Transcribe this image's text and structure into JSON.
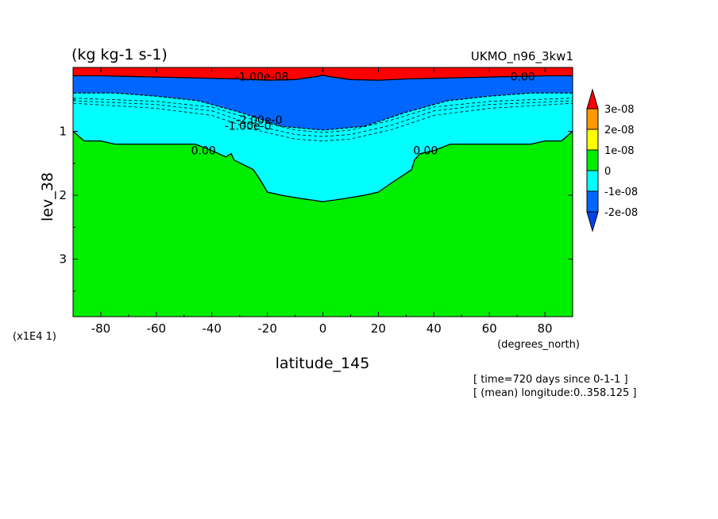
{
  "chart_data": {
    "type": "filled-contour",
    "title_left": "(kg kg-1 s-1)",
    "title_right": "UKMO_n96_3kw1",
    "xlabel": "latitude_145",
    "xunits": "(degrees_north)",
    "ylabel": "lev_38",
    "yscale_note": "(x1E4 1)",
    "xlim": [
      -90,
      90
    ],
    "ylim": [
      3.9,
      0.0
    ],
    "x_ticks": [
      -80,
      -60,
      -40,
      -20,
      0,
      20,
      40,
      60,
      80
    ],
    "x_tick_labels": [
      "-80",
      "-60",
      "-40",
      "-20",
      "0",
      "20",
      "40",
      "60",
      "80"
    ],
    "y_ticks": [
      1,
      2,
      3
    ],
    "y_tick_labels": [
      "1",
      "2",
      "3"
    ],
    "contour_labels": [
      "0.00",
      "0.00",
      "0.00",
      "-2.00e-0",
      "-1.00e-0",
      "-1.00e-08"
    ],
    "colorbar": {
      "levels": [
        "3e-08",
        "2e-08",
        "1e-08",
        "0",
        "-1e-08",
        "-2e-08"
      ],
      "colors": [
        "#ff0000",
        "#ff9900",
        "#ffff00",
        "#00ee00",
        "#00ffff",
        "#0066ff",
        "#0044ee"
      ]
    },
    "footer": [
      "[ time=720 days since 0-1-1 ]",
      "[ (mean) longitude:0..358.125 ]"
    ],
    "fill_colors": {
      "red": "#ff0000",
      "blue": "#0066ff",
      "cyan": "#00ffff",
      "green": "#00ee00"
    },
    "zero_contour": {
      "lat": [
        -90,
        -86,
        -80,
        -75,
        -60,
        -46,
        -40,
        -35,
        -33,
        -32,
        -25,
        -22,
        -20,
        -15,
        -8,
        0,
        8,
        15,
        20,
        25,
        32,
        33,
        35,
        40,
        46,
        60,
        75,
        80,
        86,
        90
      ],
      "lev": [
        1.0,
        1.15,
        1.15,
        1.2,
        1.2,
        1.2,
        1.3,
        1.4,
        1.35,
        1.45,
        1.6,
        1.8,
        1.95,
        2.0,
        2.05,
        2.1,
        2.05,
        2.0,
        1.95,
        1.8,
        1.6,
        1.45,
        1.35,
        1.3,
        1.2,
        1.2,
        1.2,
        1.15,
        1.15,
        1.0
      ]
    },
    "blue_lower_boundary": {
      "lat": [
        -90,
        -75,
        -60,
        -45,
        -30,
        -15,
        0,
        15,
        30,
        45,
        60,
        75,
        90
      ],
      "lev": [
        0.4,
        0.4,
        0.45,
        0.52,
        0.7,
        0.92,
        0.98,
        0.92,
        0.7,
        0.52,
        0.45,
        0.4,
        0.4
      ]
    },
    "red_lower_boundary": {
      "lat": [
        -90,
        -80,
        -70,
        -60,
        -50,
        -40,
        -30,
        -20,
        -10,
        -2,
        0,
        2,
        10,
        20,
        30,
        40,
        50,
        60,
        70,
        80,
        90
      ],
      "lev": [
        0.13,
        0.13,
        0.14,
        0.15,
        0.16,
        0.17,
        0.18,
        0.2,
        0.19,
        0.14,
        0.12,
        0.14,
        0.19,
        0.2,
        0.18,
        0.17,
        0.16,
        0.15,
        0.14,
        0.13,
        0.13
      ]
    },
    "dashed_contours": [
      {
        "lat": [
          -90,
          -60,
          -40,
          -25,
          -10,
          0,
          10,
          25,
          40,
          60,
          90
        ],
        "lev": [
          0.48,
          0.53,
          0.62,
          0.82,
          0.98,
          1.02,
          0.98,
          0.82,
          0.62,
          0.53,
          0.48
        ]
      },
      {
        "lat": [
          -90,
          -60,
          -40,
          -25,
          -10,
          0,
          10,
          25,
          40,
          60,
          90
        ],
        "lev": [
          0.52,
          0.58,
          0.68,
          0.9,
          1.05,
          1.08,
          1.05,
          0.9,
          0.68,
          0.58,
          0.52
        ]
      },
      {
        "lat": [
          -90,
          -60,
          -40,
          -25,
          -10,
          0,
          10,
          25,
          40,
          60,
          90
        ],
        "lev": [
          0.56,
          0.64,
          0.75,
          0.97,
          1.12,
          1.15,
          1.12,
          0.97,
          0.75,
          0.64,
          0.56
        ]
      }
    ]
  }
}
